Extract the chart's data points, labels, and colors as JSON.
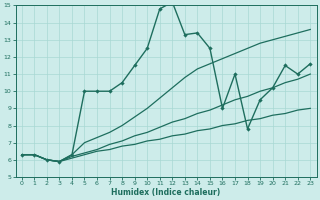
{
  "xlabel": "Humidex (Indice chaleur)",
  "xlim": [
    -0.5,
    23.5
  ],
  "ylim": [
    5,
    15
  ],
  "yticks": [
    5,
    6,
    7,
    8,
    9,
    10,
    11,
    12,
    13,
    14,
    15
  ],
  "xticks": [
    0,
    1,
    2,
    3,
    4,
    5,
    6,
    7,
    8,
    9,
    10,
    11,
    12,
    13,
    14,
    15,
    16,
    17,
    18,
    19,
    20,
    21,
    22,
    23
  ],
  "line_color": "#1e6e5e",
  "bg_color": "#cdecea",
  "grid_color": "#a8d8d4",
  "s1_x": [
    0,
    1,
    2,
    3,
    4,
    5,
    6,
    7,
    8,
    9,
    10,
    11,
    12,
    13,
    14,
    15,
    16,
    17,
    18,
    19,
    20,
    21,
    22,
    23
  ],
  "s1_y": [
    6.3,
    6.3,
    6.0,
    5.9,
    6.3,
    10.0,
    10.0,
    10.0,
    10.5,
    11.5,
    12.5,
    14.8,
    15.2,
    13.3,
    13.4,
    12.5,
    9.0,
    11.0,
    7.8,
    9.5,
    10.2,
    11.5,
    11.0,
    11.6
  ],
  "s2_x": [
    0,
    1,
    2,
    3,
    4,
    5,
    6,
    7,
    8,
    9,
    10,
    11,
    12,
    13,
    14,
    15,
    16,
    17,
    18,
    19,
    20,
    21,
    22,
    23
  ],
  "s2_y": [
    6.3,
    6.3,
    6.0,
    5.9,
    6.3,
    7.0,
    7.3,
    7.6,
    8.0,
    8.5,
    9.0,
    9.6,
    10.2,
    10.8,
    11.3,
    11.6,
    11.9,
    12.2,
    12.5,
    12.8,
    13.0,
    13.2,
    13.4,
    13.6
  ],
  "s3_x": [
    0,
    1,
    2,
    3,
    4,
    5,
    6,
    7,
    8,
    9,
    10,
    11,
    12,
    13,
    14,
    15,
    16,
    17,
    18,
    19,
    20,
    21,
    22,
    23
  ],
  "s3_y": [
    6.3,
    6.3,
    6.0,
    5.9,
    6.2,
    6.4,
    6.6,
    6.9,
    7.1,
    7.4,
    7.6,
    7.9,
    8.2,
    8.4,
    8.7,
    8.9,
    9.2,
    9.5,
    9.7,
    10.0,
    10.2,
    10.5,
    10.7,
    11.0
  ],
  "s4_x": [
    0,
    1,
    2,
    3,
    4,
    5,
    6,
    7,
    8,
    9,
    10,
    11,
    12,
    13,
    14,
    15,
    16,
    17,
    18,
    19,
    20,
    21,
    22,
    23
  ],
  "s4_y": [
    6.3,
    6.3,
    6.0,
    5.9,
    6.1,
    6.3,
    6.5,
    6.6,
    6.8,
    6.9,
    7.1,
    7.2,
    7.4,
    7.5,
    7.7,
    7.8,
    8.0,
    8.1,
    8.3,
    8.4,
    8.6,
    8.7,
    8.9,
    9.0
  ]
}
